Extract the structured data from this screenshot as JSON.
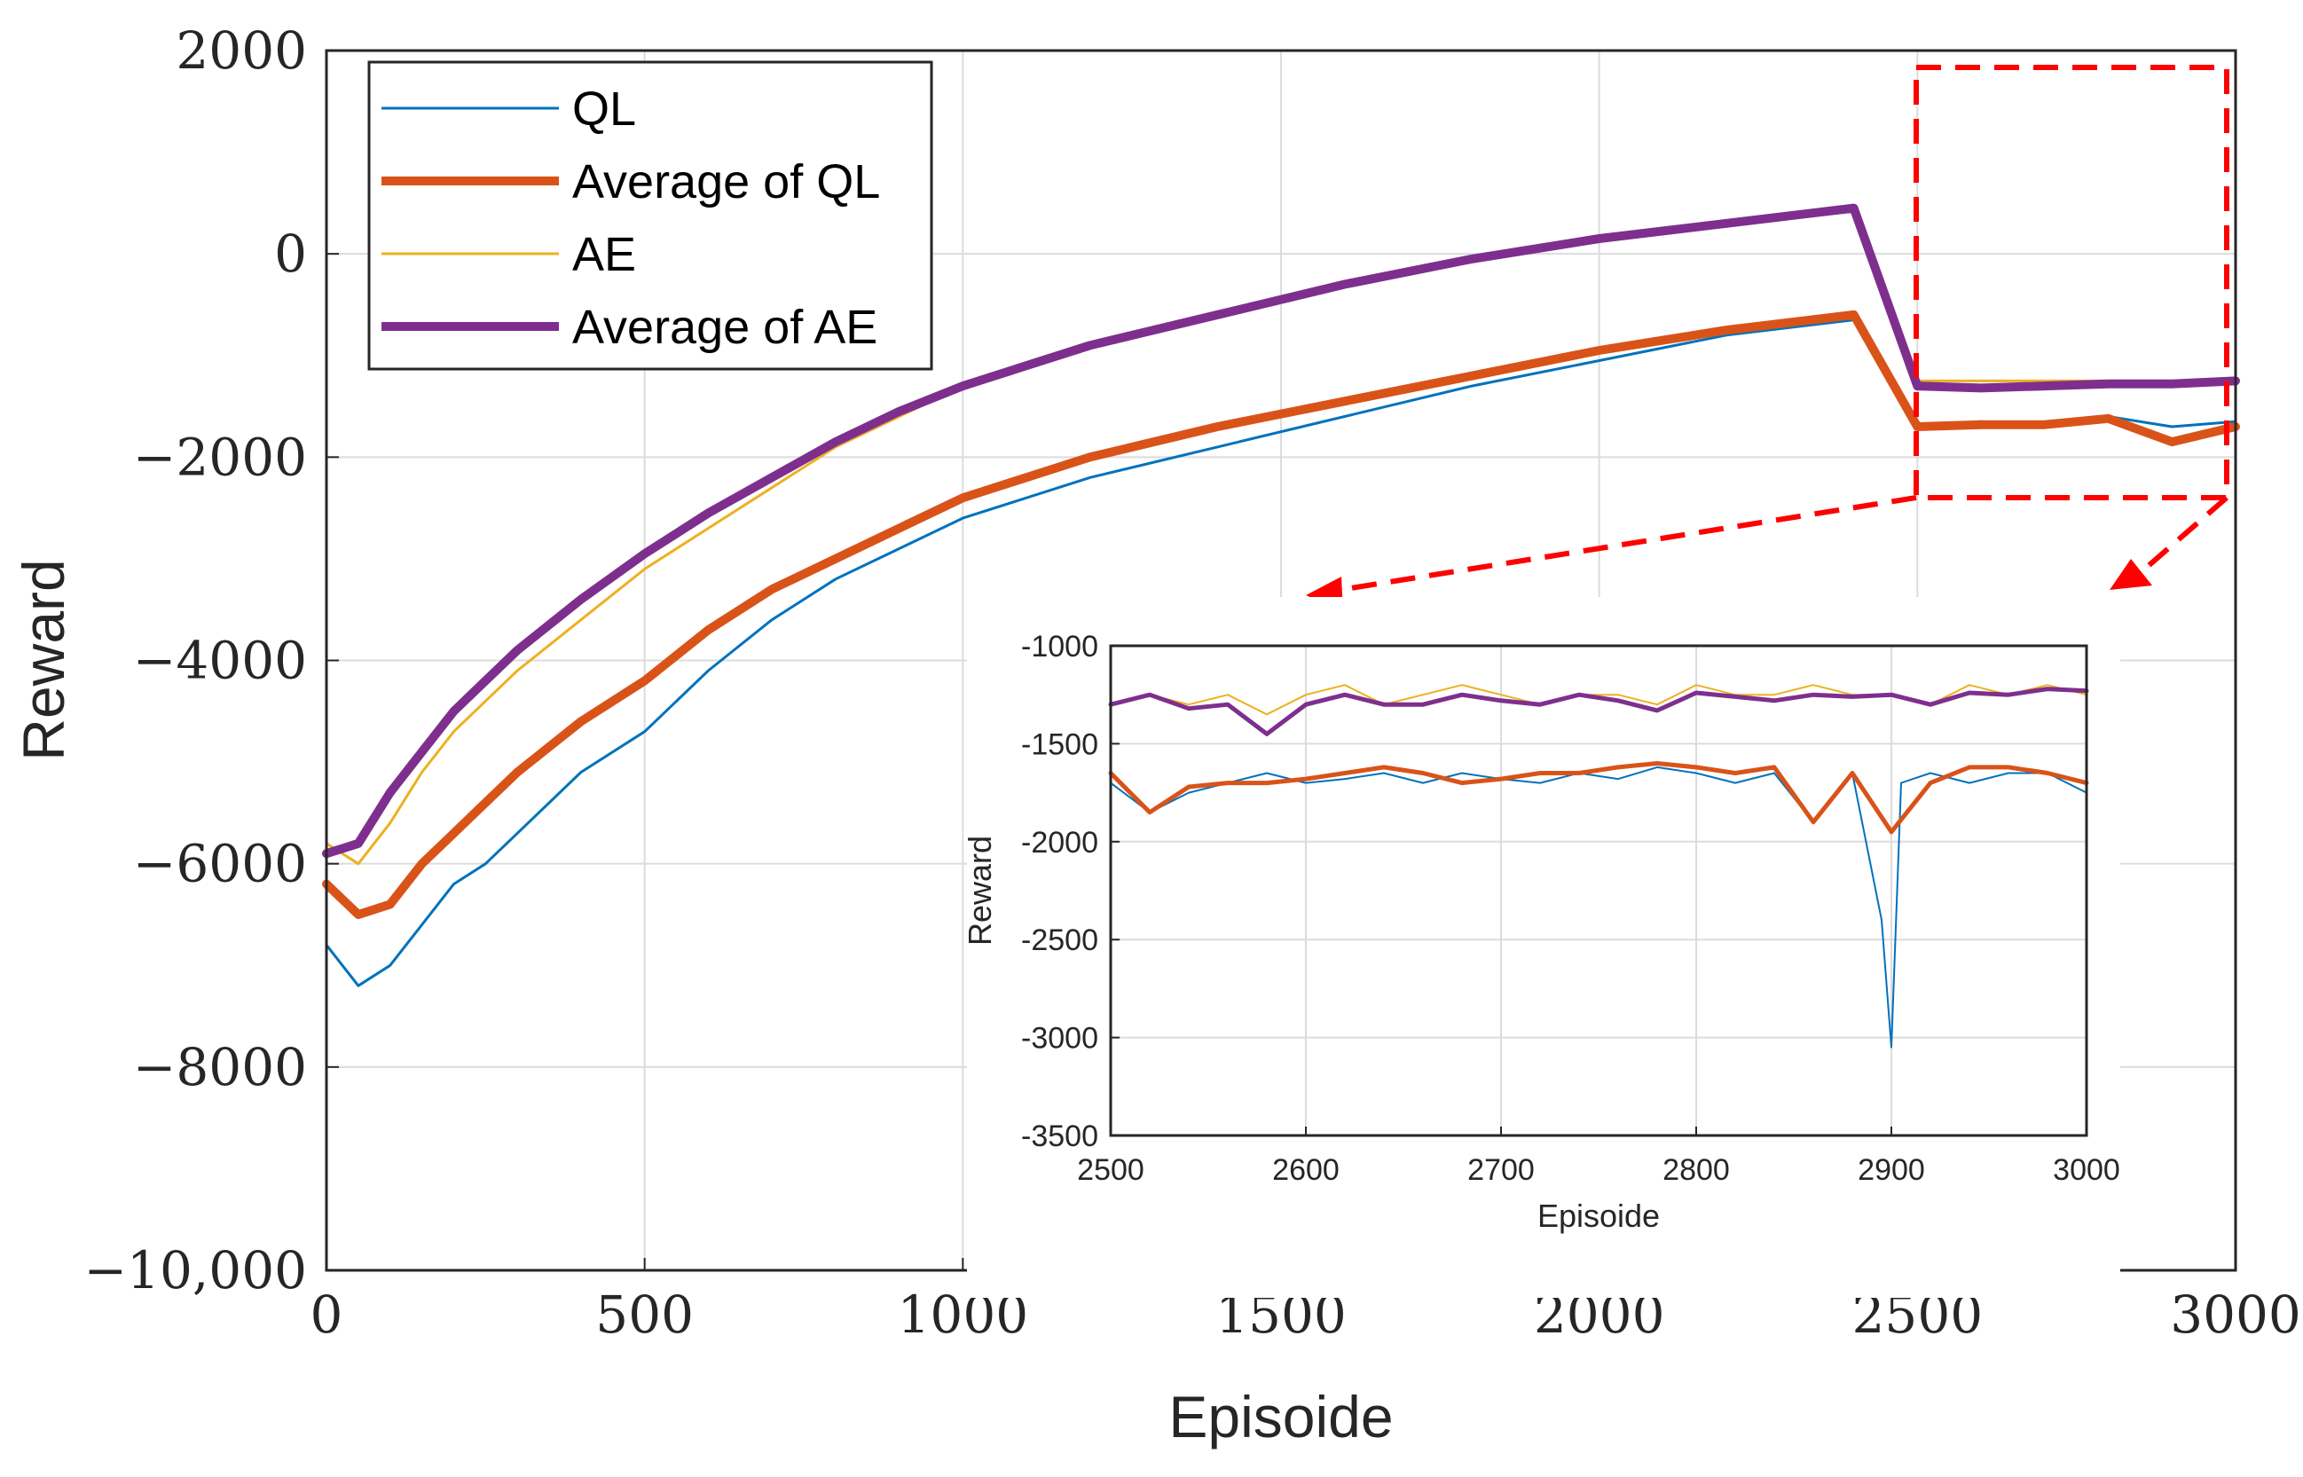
{
  "colors": {
    "ql": "#0072BD",
    "avg_ql": "#D95319",
    "ae": "#EDB120",
    "avg_ae": "#7E2F8E",
    "zoom": "#FF0000"
  },
  "chart_data": [
    {
      "type": "line",
      "title": "",
      "xlabel": "Episoide",
      "ylabel": "Reward",
      "xlim": [
        0,
        3000
      ],
      "ylim": [
        -10000,
        2000
      ],
      "xticks": [
        0,
        500,
        1000,
        1500,
        2000,
        2500,
        3000
      ],
      "xtick_labels": [
        "0",
        "500",
        "1000",
        "1500",
        "2000",
        "2500",
        "3000"
      ],
      "yticks": [
        2000,
        0,
        -2000,
        -4000,
        -6000,
        -8000,
        -10000
      ],
      "ytick_labels": [
        "2000",
        "0",
        "−2000",
        "−4000",
        "−6000",
        "−8000",
        "−10,000"
      ],
      "grid": true,
      "legend": [
        "QL",
        "Average of QL",
        "AE",
        "Average of AE"
      ],
      "legend_location": "top-left",
      "series": [
        {
          "name": "QL",
          "x": [
            0,
            50,
            100,
            150,
            200,
            250,
            300,
            400,
            500,
            600,
            700,
            800,
            900,
            1000,
            1200,
            1400,
            1600,
            1800,
            2000,
            2200,
            2400,
            2500,
            2600,
            2700,
            2800,
            2900,
            3000
          ],
          "values": [
            -6800,
            -7200,
            -7000,
            -6600,
            -6200,
            -6000,
            -5700,
            -5100,
            -4700,
            -4100,
            -3600,
            -3200,
            -2900,
            -2600,
            -2200,
            -1900,
            -1600,
            -1300,
            -1050,
            -800,
            -650,
            -1700,
            -1650,
            -1700,
            -1600,
            -1700,
            -1650
          ]
        },
        {
          "name": "Average of QL",
          "x": [
            0,
            50,
            100,
            150,
            200,
            250,
            300,
            400,
            500,
            600,
            700,
            800,
            900,
            1000,
            1200,
            1400,
            1600,
            1800,
            2000,
            2200,
            2400,
            2500,
            2600,
            2700,
            2800,
            2900,
            3000
          ],
          "values": [
            -6200,
            -6500,
            -6400,
            -6000,
            -5700,
            -5400,
            -5100,
            -4600,
            -4200,
            -3700,
            -3300,
            -3000,
            -2700,
            -2400,
            -2000,
            -1700,
            -1450,
            -1200,
            -950,
            -750,
            -600,
            -1700,
            -1680,
            -1680,
            -1620,
            -1850,
            -1700
          ]
        },
        {
          "name": "AE",
          "x": [
            0,
            50,
            100,
            150,
            200,
            250,
            300,
            400,
            500,
            600,
            700,
            800,
            900,
            1000,
            1200,
            1400,
            1600,
            1800,
            2000,
            2200,
            2400,
            2500,
            2600,
            2700,
            2800,
            2900,
            3000
          ],
          "values": [
            -5800,
            -6000,
            -5600,
            -5100,
            -4700,
            -4400,
            -4100,
            -3600,
            -3100,
            -2700,
            -2300,
            -1900,
            -1600,
            -1300,
            -900,
            -600,
            -300,
            -50,
            150,
            300,
            450,
            -1250,
            -1250,
            -1250,
            -1250,
            -1250,
            -1250
          ]
        },
        {
          "name": "Average of AE",
          "x": [
            0,
            50,
            100,
            150,
            200,
            250,
            300,
            400,
            500,
            600,
            700,
            800,
            900,
            1000,
            1200,
            1400,
            1600,
            1800,
            2000,
            2200,
            2400,
            2500,
            2600,
            2700,
            2800,
            2900,
            3000
          ],
          "values": [
            -5900,
            -5800,
            -5300,
            -4900,
            -4500,
            -4200,
            -3900,
            -3400,
            -2950,
            -2550,
            -2200,
            -1850,
            -1550,
            -1300,
            -900,
            -600,
            -300,
            -50,
            150,
            300,
            450,
            -1300,
            -1320,
            -1300,
            -1280,
            -1280,
            -1250
          ]
        }
      ]
    },
    {
      "type": "line",
      "title": "",
      "xlabel": "Episoide",
      "ylabel": "Reward",
      "xlim": [
        2500,
        3000
      ],
      "ylim": [
        -3500,
        -1000
      ],
      "xticks": [
        2500,
        2600,
        2700,
        2800,
        2900,
        3000
      ],
      "xtick_labels": [
        "2500",
        "2600",
        "2700",
        "2800",
        "2900",
        "3000"
      ],
      "yticks": [
        -1000,
        -1500,
        -2000,
        -2500,
        -3000,
        -3500
      ],
      "ytick_labels": [
        "-1000",
        "-1500",
        "-2000",
        "-2500",
        "-3000",
        "-3500"
      ],
      "grid": true,
      "series": [
        {
          "name": "QL",
          "x": [
            2500,
            2520,
            2540,
            2560,
            2580,
            2600,
            2620,
            2640,
            2660,
            2680,
            2700,
            2720,
            2740,
            2760,
            2780,
            2800,
            2820,
            2840,
            2860,
            2880,
            2895,
            2900,
            2905,
            2920,
            2940,
            2960,
            2980,
            3000
          ],
          "values": [
            -1700,
            -1850,
            -1750,
            -1700,
            -1650,
            -1700,
            -1680,
            -1650,
            -1700,
            -1650,
            -1680,
            -1700,
            -1650,
            -1680,
            -1620,
            -1650,
            -1700,
            -1650,
            -1900,
            -1650,
            -2400,
            -3050,
            -1700,
            -1650,
            -1700,
            -1650,
            -1650,
            -1750
          ]
        },
        {
          "name": "Average of QL",
          "x": [
            2500,
            2520,
            2540,
            2560,
            2580,
            2600,
            2620,
            2640,
            2660,
            2680,
            2700,
            2720,
            2740,
            2760,
            2780,
            2800,
            2820,
            2840,
            2860,
            2880,
            2900,
            2920,
            2940,
            2960,
            2980,
            3000
          ],
          "values": [
            -1650,
            -1850,
            -1720,
            -1700,
            -1700,
            -1680,
            -1650,
            -1620,
            -1650,
            -1700,
            -1680,
            -1650,
            -1650,
            -1620,
            -1600,
            -1620,
            -1650,
            -1620,
            -1900,
            -1650,
            -1950,
            -1700,
            -1620,
            -1620,
            -1650,
            -1700
          ]
        },
        {
          "name": "AE",
          "x": [
            2500,
            2520,
            2540,
            2560,
            2580,
            2600,
            2620,
            2640,
            2660,
            2680,
            2700,
            2720,
            2740,
            2760,
            2780,
            2800,
            2820,
            2840,
            2860,
            2880,
            2900,
            2920,
            2940,
            2960,
            2980,
            3000
          ],
          "values": [
            -1300,
            -1250,
            -1300,
            -1250,
            -1350,
            -1250,
            -1200,
            -1300,
            -1250,
            -1200,
            -1250,
            -1300,
            -1250,
            -1250,
            -1300,
            -1200,
            -1250,
            -1250,
            -1200,
            -1250,
            -1250,
            -1300,
            -1200,
            -1250,
            -1200,
            -1250
          ]
        },
        {
          "name": "Average of AE",
          "x": [
            2500,
            2520,
            2540,
            2560,
            2580,
            2600,
            2620,
            2640,
            2660,
            2680,
            2700,
            2720,
            2740,
            2760,
            2780,
            2800,
            2820,
            2840,
            2860,
            2880,
            2900,
            2920,
            2940,
            2960,
            2980,
            3000
          ],
          "values": [
            -1300,
            -1250,
            -1320,
            -1300,
            -1450,
            -1300,
            -1250,
            -1300,
            -1300,
            -1250,
            -1280,
            -1300,
            -1250,
            -1280,
            -1330,
            -1240,
            -1260,
            -1280,
            -1250,
            -1260,
            -1250,
            -1300,
            -1240,
            -1250,
            -1220,
            -1230
          ]
        }
      ]
    }
  ]
}
